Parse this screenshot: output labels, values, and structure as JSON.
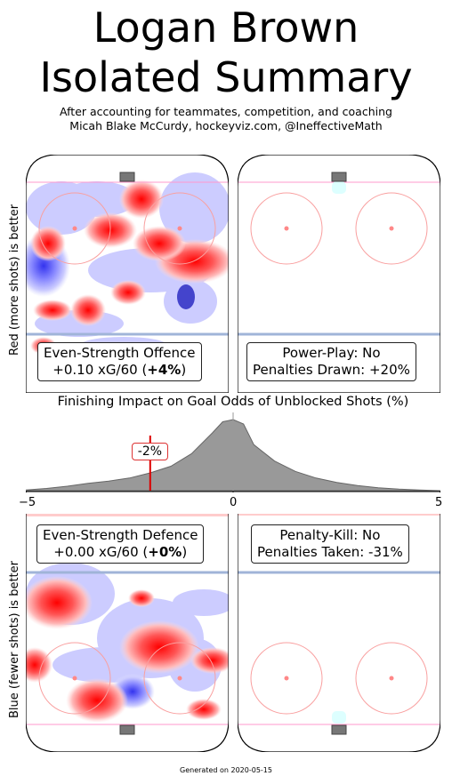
{
  "header": {
    "title_line1": "Logan Brown",
    "title_line2": "Isolated Summary",
    "subtitle_line1": "After accounting for teammates, competition, and coaching",
    "subtitle_line2": "Micah Blake McCurdy, hockeyviz.com, @IneffectiveMath"
  },
  "axis_labels": {
    "top": "Red (more shots) is better",
    "bottom": "Blue (fewer shots) is better"
  },
  "panels": {
    "offence": {
      "line1": "Even-Strength Offence",
      "line2_prefix": "+0.10 xG/60 (",
      "line2_bold": "+4%",
      "line2_suffix": ")"
    },
    "powerplay": {
      "line1": "Power-Play: No",
      "line2": "Penalties Drawn: +20%"
    },
    "defence": {
      "line1": "Even-Strength Defence",
      "line2_prefix": "+0.00 xG/60 (",
      "line2_bold": "+0%",
      "line2_suffix": ")"
    },
    "penaltykill": {
      "line1": "Penalty-Kill: No",
      "line2": "Penalties Taken: -31%"
    }
  },
  "chart_data": {
    "type": "area",
    "title": "Finishing Impact on Goal Odds of Unblocked Shots (%)",
    "x": [
      -5,
      -4.5,
      -4,
      -3.5,
      -3,
      -2.5,
      -2,
      -1.5,
      -1,
      -0.5,
      -0.25,
      0,
      0.25,
      0.5,
      1,
      1.5,
      2,
      2.5,
      3,
      3.5,
      4,
      4.5,
      5
    ],
    "density": [
      0.01,
      0.03,
      0.06,
      0.1,
      0.13,
      0.17,
      0.24,
      0.33,
      0.5,
      0.78,
      0.93,
      0.96,
      0.9,
      0.62,
      0.4,
      0.26,
      0.17,
      0.11,
      0.07,
      0.04,
      0.02,
      0.01,
      0.0
    ],
    "xlim": [
      -5,
      5
    ],
    "xticks": [
      "−5",
      "0",
      "5"
    ],
    "marker_value": -2,
    "marker_label": "-2%",
    "colors": {
      "fill": "#999999",
      "edge": "#666666",
      "marker": "#dd0000"
    }
  },
  "footer": {
    "text": "Generated on 2020-05-15"
  }
}
